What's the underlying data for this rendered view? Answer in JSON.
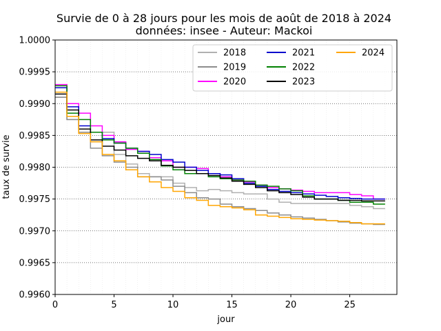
{
  "chart_data": {
    "type": "line",
    "title": "Survie de 0 à 28 jours pour les mois de août de 2018 à 2024",
    "subtitle": "données: insee - Auteur: Mackoi",
    "xlabel": "jour",
    "ylabel": "taux de survie",
    "xlim": [
      0,
      29
    ],
    "ylim": [
      0.996,
      1.0
    ],
    "xticks": [
      "0",
      "5",
      "10",
      "15",
      "20",
      "25"
    ],
    "yticks": [
      "0.9960",
      "0.9965",
      "0.9970",
      "0.9975",
      "0.9980",
      "0.9985",
      "0.9990",
      "0.9995",
      "1.0000"
    ],
    "grid": "horizontal dotted, vertical faint",
    "legend_placement": "top-right",
    "x": [
      0,
      1,
      2,
      3,
      4,
      5,
      6,
      7,
      8,
      9,
      10,
      11,
      12,
      13,
      14,
      15,
      16,
      17,
      18,
      19,
      20,
      21,
      22,
      23,
      24,
      25,
      26,
      27,
      28
    ],
    "series": [
      {
        "name": "2018",
        "color": "#b0b0b0",
        "values": [
          0.9991,
          0.99875,
          0.99855,
          0.9984,
          0.99855,
          0.9982,
          0.99805,
          0.9979,
          0.99785,
          0.99785,
          0.99775,
          0.99768,
          0.99763,
          0.99765,
          0.99763,
          0.9976,
          0.99758,
          0.99758,
          0.9975,
          0.99745,
          0.99743,
          0.99743,
          0.99743,
          0.99743,
          0.99743,
          0.9974,
          0.99738,
          0.99735,
          0.99735
        ]
      },
      {
        "name": "2019",
        "color": "#8c8c8c",
        "values": [
          0.9991,
          0.99875,
          0.99855,
          0.9983,
          0.99818,
          0.99808,
          0.998,
          0.99785,
          0.99785,
          0.9978,
          0.9977,
          0.9976,
          0.99752,
          0.9975,
          0.99742,
          0.99738,
          0.99735,
          0.99732,
          0.99728,
          0.99725,
          0.99722,
          0.9972,
          0.99718,
          0.99716,
          0.99714,
          0.99712,
          0.99711,
          0.9971,
          0.9971
        ]
      },
      {
        "name": "2020",
        "color": "#ff00ff",
        "values": [
          0.9993,
          0.999,
          0.99885,
          0.99865,
          0.9985,
          0.9984,
          0.99828,
          0.99825,
          0.99815,
          0.9981,
          0.998,
          0.998,
          0.99798,
          0.9979,
          0.99785,
          0.9978,
          0.99777,
          0.99772,
          0.99768,
          0.99766,
          0.99764,
          0.99762,
          0.9976,
          0.9976,
          0.9976,
          0.99757,
          0.99755,
          0.9975,
          0.9975
        ]
      },
      {
        "name": "2021",
        "color": "#0000cc",
        "values": [
          0.99925,
          0.99895,
          0.99865,
          0.99855,
          0.99845,
          0.99838,
          0.9983,
          0.99825,
          0.9982,
          0.99812,
          0.99808,
          0.998,
          0.99795,
          0.9979,
          0.99788,
          0.99782,
          0.99775,
          0.9977,
          0.99765,
          0.99762,
          0.9976,
          0.99758,
          0.99756,
          0.99754,
          0.99752,
          0.99751,
          0.9975,
          0.9975,
          0.9975
        ]
      },
      {
        "name": "2022",
        "color": "#008000",
        "values": [
          0.99928,
          0.99885,
          0.99875,
          0.99855,
          0.99843,
          0.99838,
          0.9983,
          0.99822,
          0.99812,
          0.99802,
          0.99796,
          0.9979,
          0.9979,
          0.99785,
          0.99782,
          0.9978,
          0.99778,
          0.99772,
          0.9977,
          0.99766,
          0.99763,
          0.99755,
          0.9975,
          0.9975,
          0.99748,
          0.99745,
          0.99745,
          0.99742,
          0.99742
        ]
      },
      {
        "name": "2023",
        "color": "#000000",
        "values": [
          0.99915,
          0.9989,
          0.9986,
          0.99843,
          0.99833,
          0.99827,
          0.99818,
          0.99814,
          0.9981,
          0.99803,
          0.998,
          0.99795,
          0.9979,
          0.99787,
          0.99783,
          0.99778,
          0.99773,
          0.99768,
          0.99763,
          0.9976,
          0.99757,
          0.99753,
          0.9975,
          0.9975,
          0.99748,
          0.99748,
          0.99747,
          0.99747,
          0.99747
        ]
      },
      {
        "name": "2024",
        "color": "#ffa500",
        "values": [
          0.99918,
          0.9988,
          0.99853,
          0.9984,
          0.9982,
          0.9981,
          0.99796,
          0.99785,
          0.99777,
          0.99768,
          0.99762,
          0.99752,
          0.99748,
          0.9974,
          0.99738,
          0.99736,
          0.99733,
          0.99725,
          0.99723,
          0.99721,
          0.99719,
          0.99718,
          0.99717,
          0.99716,
          0.99715,
          0.99713,
          0.99711,
          0.99711,
          0.99711
        ]
      }
    ]
  }
}
